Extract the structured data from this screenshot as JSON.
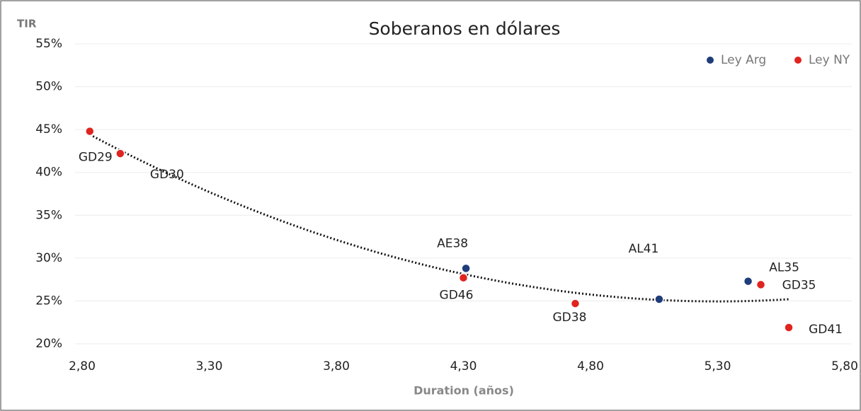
{
  "chart_data": {
    "type": "scatter",
    "title": "Soberanos  en dólares",
    "y_label": "TIR",
    "x_label": "Duration (años)",
    "xlim": [
      2.8,
      5.8
    ],
    "xticks": [
      {
        "value": 2.8,
        "label": "2,80"
      },
      {
        "value": 3.3,
        "label": "3,30"
      },
      {
        "value": 3.8,
        "label": "3,80"
      },
      {
        "value": 4.3,
        "label": "4,30"
      },
      {
        "value": 4.8,
        "label": "4,80"
      },
      {
        "value": 5.3,
        "label": "5,30"
      },
      {
        "value": 5.8,
        "label": "5,80"
      }
    ],
    "ylim": [
      20,
      55
    ],
    "yticks": [
      {
        "value": 20,
        "label": "20%"
      },
      {
        "value": 25,
        "label": "25%"
      },
      {
        "value": 30,
        "label": "30%"
      },
      {
        "value": 35,
        "label": "35%"
      },
      {
        "value": 40,
        "label": "40%"
      },
      {
        "value": 45,
        "label": "45%"
      },
      {
        "value": 50,
        "label": "50%"
      },
      {
        "value": 55,
        "label": "55%"
      }
    ],
    "grid": true,
    "legend": "top-right",
    "trendline": {
      "type": "polynomial",
      "order": 2
    },
    "series": [
      {
        "name": "Ley Arg",
        "color": "#1f3d7a",
        "x": [
          4.31,
          5.07,
          5.42
        ],
        "values": [
          28.8,
          25.2,
          27.3
        ],
        "labels": [
          "AE38",
          "AL41",
          "AL35"
        ]
      },
      {
        "name": "Ley NY",
        "color": "#e0241f",
        "x": [
          2.83,
          2.95,
          4.3,
          4.74,
          5.47,
          5.58
        ],
        "values": [
          44.8,
          42.2,
          27.7,
          24.7,
          26.9,
          21.9
        ],
        "labels": [
          "GD29",
          "GD30",
          "GD46",
          "GD38",
          "GD35",
          "GD41"
        ]
      }
    ]
  }
}
